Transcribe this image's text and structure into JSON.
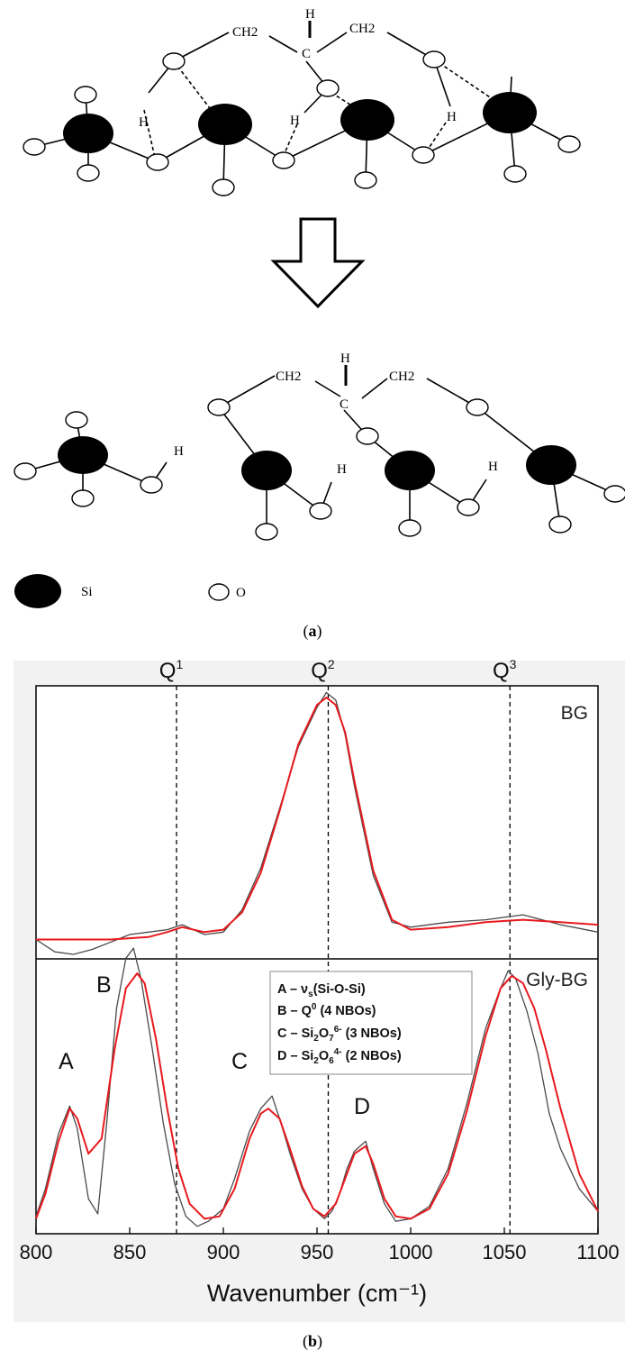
{
  "scheme": {
    "top": {
      "groups": [
        "CH2",
        "H",
        "C",
        "CH2"
      ],
      "h_labels": [
        "H",
        "H",
        "H"
      ]
    },
    "bottom": {
      "groups": [
        "CH2",
        "H",
        "C",
        "CH2"
      ],
      "h_labels": [
        "H",
        "H",
        "H"
      ]
    },
    "legend": {
      "si_label": "Si",
      "o_label": "O"
    },
    "panel_label": "a"
  },
  "spectrum": {
    "panel_label": "b",
    "xlabel": "Wavenumber (cm⁻¹)",
    "q_labels": [
      {
        "base": "Q",
        "sup": "1",
        "x": 875
      },
      {
        "base": "Q",
        "sup": "2",
        "x": 956
      },
      {
        "base": "Q",
        "sup": "3",
        "x": 1053
      }
    ],
    "legend": [
      {
        "letter": "A",
        "text": "A – νs(Si-O-Si)"
      },
      {
        "letter": "B",
        "text": "B – Q0 (4 NBOs)"
      },
      {
        "letter": "C",
        "text": "C – Si2O7 6- (3 NBOs)"
      },
      {
        "letter": "D",
        "text": "D – Si2O6 4- (2 NBOs)"
      }
    ],
    "legend_display": {
      "a": [
        "A – ν",
        "s",
        "(Si-O-Si)"
      ],
      "b": [
        "B – Q",
        "0",
        " (4 NBOs)"
      ],
      "c": [
        "C – Si",
        "2",
        "O",
        "7",
        "6-",
        " (3 NBOs)"
      ],
      "d": [
        "D – Si",
        "2",
        "O",
        "6",
        "4-",
        " (2 NBOs)"
      ]
    },
    "peak_labels": [
      "A",
      "B",
      "C",
      "D"
    ]
  },
  "chart_data": {
    "type": "line",
    "xlabel": "Wavenumber (cm⁻¹)",
    "xlim": [
      800,
      1100
    ],
    "xticks": [
      800,
      850,
      900,
      950,
      1000,
      1050,
      1100
    ],
    "vlines": [
      875,
      956,
      1053
    ],
    "panels": [
      {
        "name": "BG",
        "series": [
          {
            "color": "#e8191e",
            "x": [
              800,
              820,
              840,
              860,
              870,
              878,
              890,
              900,
              910,
              920,
              930,
              940,
              950,
              955,
              960,
              965,
              970,
              980,
              990,
              1000,
              1020,
              1040,
              1060,
              1080,
              1100
            ],
            "y": [
              0.02,
              0.02,
              0.02,
              0.03,
              0.05,
              0.07,
              0.05,
              0.06,
              0.13,
              0.29,
              0.54,
              0.81,
              0.97,
              1.0,
              0.97,
              0.86,
              0.66,
              0.3,
              0.1,
              0.06,
              0.07,
              0.09,
              0.1,
              0.09,
              0.08
            ]
          },
          {
            "color": "#4a4a4a",
            "x": [
              800,
              810,
              820,
              830,
              840,
              850,
              860,
              870,
              878,
              890,
              900,
              910,
              920,
              930,
              940,
              950,
              955,
              960,
              965,
              970,
              980,
              990,
              1000,
              1020,
              1040,
              1060,
              1080,
              1100
            ],
            "y": [
              0.02,
              -0.03,
              -0.04,
              -0.02,
              0.01,
              0.04,
              0.05,
              0.06,
              0.08,
              0.04,
              0.05,
              0.14,
              0.31,
              0.55,
              0.8,
              0.96,
              1.02,
              0.99,
              0.85,
              0.64,
              0.28,
              0.09,
              0.07,
              0.09,
              0.1,
              0.12,
              0.08,
              0.05
            ]
          }
        ]
      },
      {
        "name": "Gly-BG",
        "series": [
          {
            "color": "#e8191e",
            "x": [
              800,
              805,
              812,
              818,
              822,
              828,
              835,
              842,
              848,
              854,
              858,
              864,
              870,
              876,
              882,
              890,
              898,
              906,
              914,
              920,
              924,
              930,
              936,
              942,
              948,
              954,
              960,
              966,
              970,
              976,
              980,
              986,
              992,
              1000,
              1010,
              1020,
              1030,
              1040,
              1048,
              1054,
              1060,
              1066,
              1072,
              1080,
              1090,
              1100
            ],
            "y": [
              0.02,
              0.12,
              0.33,
              0.46,
              0.42,
              0.28,
              0.34,
              0.7,
              0.94,
              1.0,
              0.96,
              0.74,
              0.46,
              0.22,
              0.08,
              0.02,
              0.03,
              0.14,
              0.34,
              0.44,
              0.46,
              0.42,
              0.29,
              0.15,
              0.06,
              0.03,
              0.08,
              0.2,
              0.28,
              0.31,
              0.24,
              0.1,
              0.03,
              0.02,
              0.06,
              0.2,
              0.45,
              0.75,
              0.94,
              0.99,
              0.96,
              0.86,
              0.7,
              0.46,
              0.2,
              0.05
            ]
          },
          {
            "color": "#4a4a4a",
            "x": [
              800,
              805,
              812,
              818,
              822,
              828,
              833,
              838,
              843,
              848,
              852,
              856,
              862,
              868,
              874,
              880,
              886,
              892,
              900,
              906,
              914,
              920,
              926,
              930,
              936,
              942,
              948,
              954,
              958,
              962,
              966,
              970,
              976,
              980,
              986,
              992,
              1000,
              1010,
              1020,
              1030,
              1040,
              1048,
              1052,
              1056,
              1062,
              1068,
              1074,
              1080,
              1090,
              1100
            ],
            "y": [
              0.03,
              0.14,
              0.36,
              0.47,
              0.38,
              0.1,
              0.04,
              0.42,
              0.86,
              1.06,
              1.1,
              0.98,
              0.7,
              0.4,
              0.16,
              0.03,
              -0.01,
              0.01,
              0.06,
              0.18,
              0.37,
              0.46,
              0.51,
              0.42,
              0.27,
              0.14,
              0.06,
              0.02,
              0.05,
              0.12,
              0.22,
              0.29,
              0.33,
              0.22,
              0.08,
              0.01,
              0.02,
              0.07,
              0.22,
              0.48,
              0.78,
              0.94,
              1.01,
              0.98,
              0.85,
              0.68,
              0.44,
              0.3,
              0.14,
              0.05
            ]
          }
        ]
      }
    ],
    "peaks": [
      {
        "label": "A",
        "x": 818
      },
      {
        "label": "B",
        "x": 853
      },
      {
        "label": "C",
        "x": 922
      },
      {
        "label": "D",
        "x": 975
      }
    ]
  }
}
